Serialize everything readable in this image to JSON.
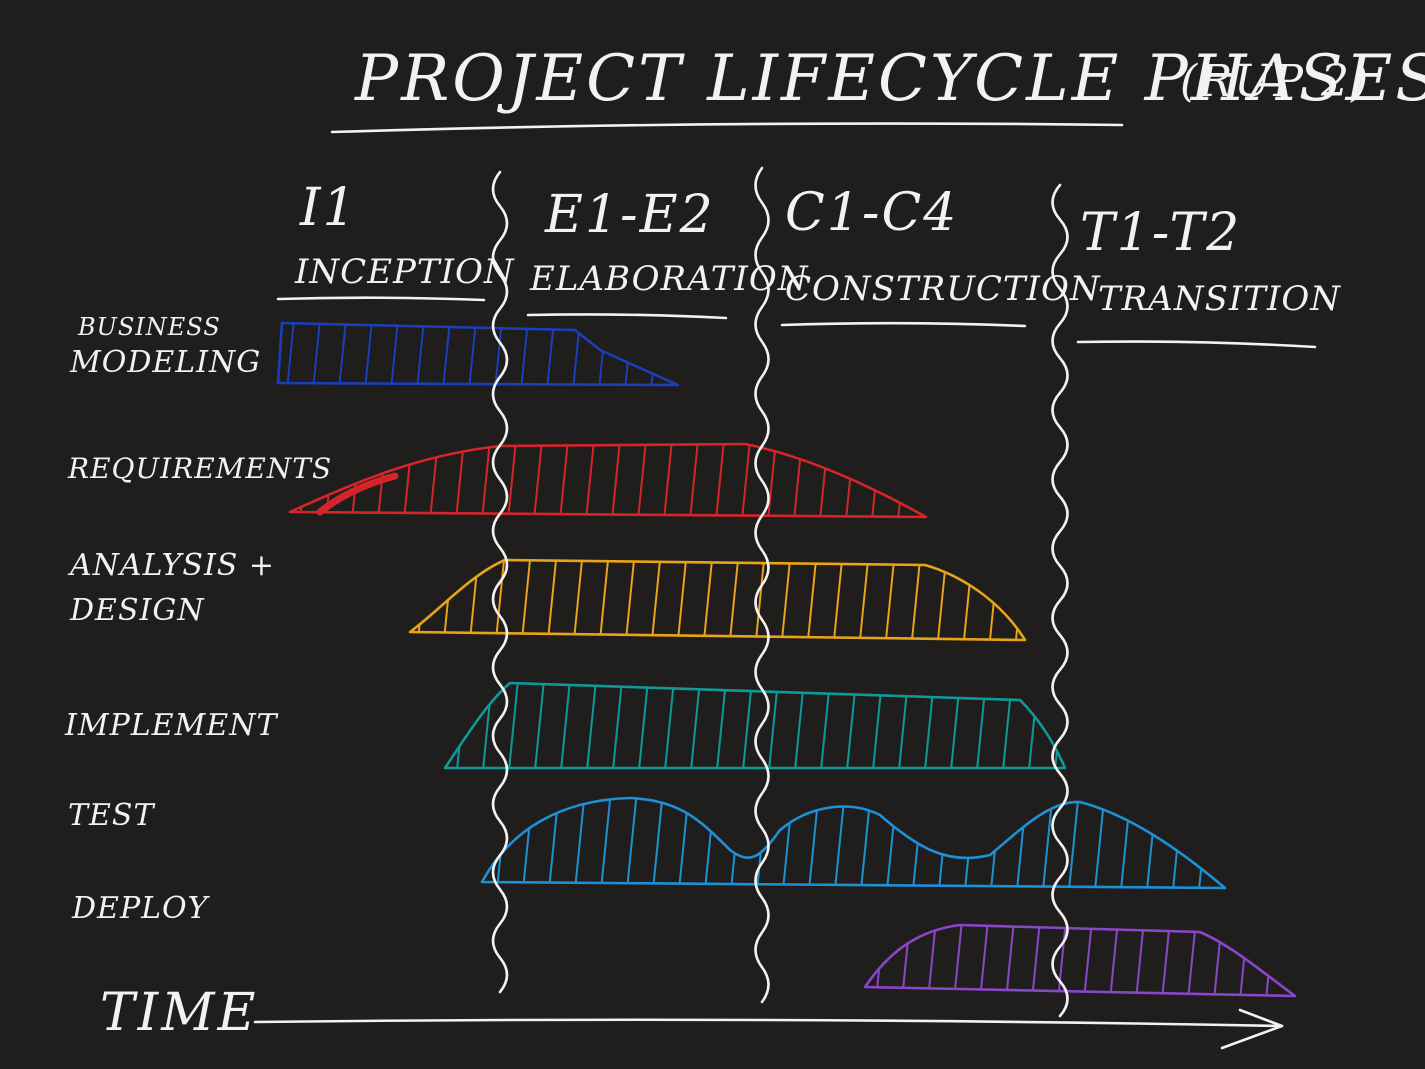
{
  "title": "PROJECT LIFECYCLE PHASES",
  "subtitle": "(RUP 2)",
  "phases": [
    {
      "code": "I1",
      "name": "INCEPTION"
    },
    {
      "code": "E1-E2",
      "name": "ELABORATION"
    },
    {
      "code": "C1-C4",
      "name": "CONSTRUCTION"
    },
    {
      "code": "T1-T2",
      "name": "TRANSITION"
    }
  ],
  "disciplines": [
    {
      "line1": "BUSINESS",
      "line2": "MODELING",
      "color": "#1b3fb8"
    },
    {
      "line1": "REQUIREMENTS",
      "line2": "",
      "color": "#d4262a"
    },
    {
      "line1": "ANALYSIS +",
      "line2": "DESIGN",
      "color": "#e8a317"
    },
    {
      "line1": "IMPLEMENT",
      "line2": "",
      "color": "#0f9a9a"
    },
    {
      "line1": "TEST",
      "line2": "",
      "color": "#1e90d6"
    },
    {
      "line1": "DEPLOY",
      "line2": "",
      "color": "#8a46c9"
    }
  ],
  "axis": {
    "label": "TIME"
  }
}
